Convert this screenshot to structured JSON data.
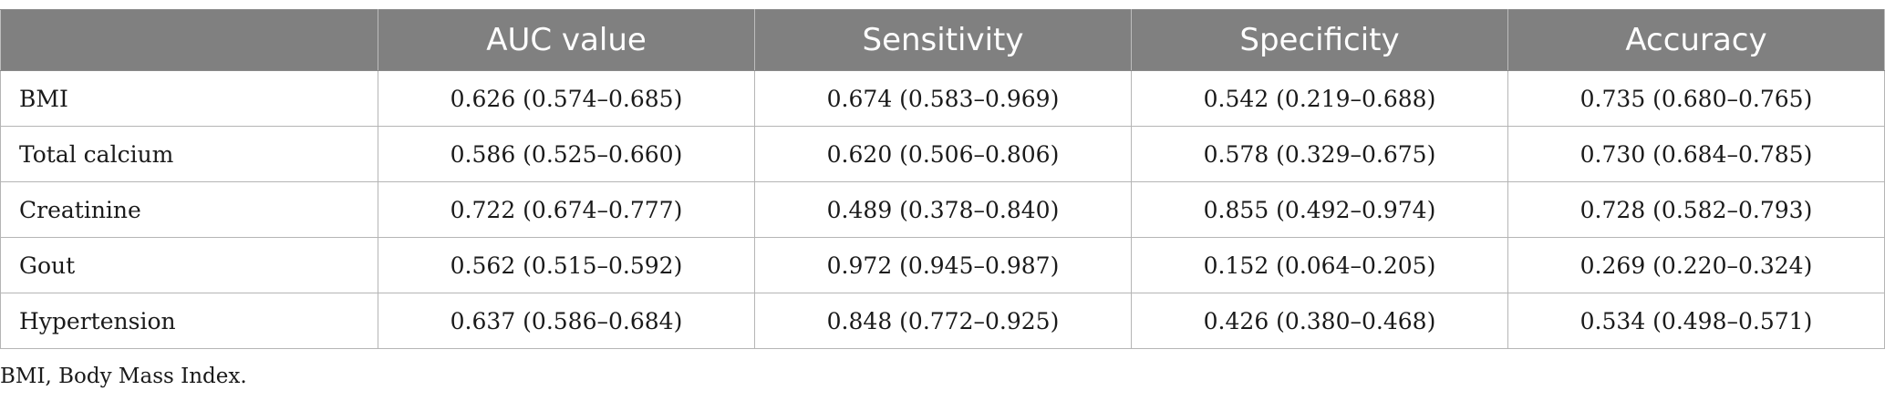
{
  "table": {
    "headers": [
      "",
      "AUC value",
      "Sensitivity",
      "Specificity",
      "Accuracy"
    ],
    "rows": [
      {
        "label": "BMI",
        "values": [
          "0.626 (0.574–0.685)",
          "0.674 (0.583–0.969)",
          "0.542 (0.219–0.688)",
          "0.735 (0.680–0.765)"
        ]
      },
      {
        "label": "Total calcium",
        "values": [
          "0.586 (0.525–0.660)",
          "0.620 (0.506–0.806)",
          "0.578 (0.329–0.675)",
          "0.730 (0.684–0.785)"
        ]
      },
      {
        "label": "Creatinine",
        "values": [
          "0.722 (0.674–0.777)",
          "0.489 (0.378–0.840)",
          "0.855 (0.492–0.974)",
          "0.728 (0.582–0.793)"
        ]
      },
      {
        "label": "Gout",
        "values": [
          "0.562 (0.515–0.592)",
          "0.972 (0.945–0.987)",
          "0.152 (0.064–0.205)",
          "0.269 (0.220–0.324)"
        ]
      },
      {
        "label": "Hypertension",
        "values": [
          "0.637 (0.586–0.684)",
          "0.848 (0.772–0.925)",
          "0.426 (0.380–0.468)",
          "0.534 (0.498–0.571)"
        ]
      }
    ]
  },
  "footnote": "BMI, Body Mass Index."
}
